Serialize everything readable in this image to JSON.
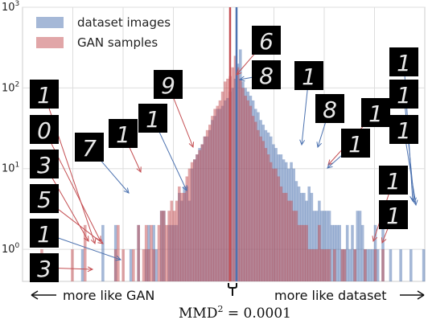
{
  "chart_data": {
    "type": "histogram",
    "yscale": "log",
    "ylim": [
      0.4,
      1000
    ],
    "y_ticks": [
      {
        "value": 1,
        "base": "10",
        "exp": "0"
      },
      {
        "value": 10,
        "base": "10",
        "exp": "1"
      },
      {
        "value": 100,
        "base": "10",
        "exp": "2"
      },
      {
        "value": 1000,
        "base": "10",
        "exp": "3"
      }
    ],
    "grid": true,
    "legend": {
      "position": "top-left"
    },
    "series": [
      {
        "name": "dataset images",
        "color": "#4c72b0",
        "values": [
          0,
          0,
          0,
          0,
          0,
          0,
          0,
          0,
          0,
          0,
          0,
          0,
          0,
          0,
          0,
          0,
          0,
          0,
          0,
          0,
          0,
          0,
          0,
          1,
          0,
          0,
          0,
          0,
          0,
          0,
          0,
          2,
          0,
          0,
          0,
          0,
          2,
          0,
          0,
          0,
          0,
          0,
          1,
          0,
          0,
          2,
          0,
          0,
          1,
          2,
          0,
          2,
          1,
          0,
          3,
          3,
          0,
          2,
          2,
          2,
          2,
          5,
          4,
          6,
          6,
          4,
          10,
          13,
          15,
          18,
          20,
          25,
          25,
          30,
          40,
          45,
          55,
          55,
          60,
          70,
          75,
          90,
          100,
          130,
          200,
          300,
          120,
          100,
          90,
          80,
          70,
          55,
          50,
          40,
          35,
          30,
          28,
          25,
          20,
          18,
          15,
          15,
          13,
          12,
          10,
          12,
          10,
          7,
          6,
          5,
          5,
          4,
          6,
          5,
          3,
          3,
          4,
          3,
          3,
          3,
          3,
          2,
          2,
          2,
          2,
          1,
          1,
          2,
          1,
          2,
          1,
          3,
          3,
          2,
          1,
          1,
          1,
          1,
          2,
          1,
          0,
          2,
          0,
          0,
          1,
          0,
          0,
          0,
          1,
          0,
          0,
          0,
          1,
          0,
          0,
          0,
          0,
          1
        ]
      },
      {
        "name": "GAN samples",
        "color": "#c44e52",
        "values": [
          0,
          0,
          0,
          0,
          0,
          0,
          0,
          1,
          0,
          0,
          0,
          0,
          0,
          0,
          0,
          0,
          0,
          0,
          0,
          1,
          0,
          0,
          0,
          0,
          2,
          0,
          0,
          0,
          0,
          0,
          0,
          0,
          0,
          0,
          0,
          0,
          1,
          2,
          0,
          1,
          0,
          0,
          0,
          1,
          0,
          2,
          0,
          1,
          2,
          1,
          2,
          1,
          0,
          2,
          3,
          3,
          2,
          3,
          4,
          3,
          4,
          6,
          5,
          5,
          8,
          10,
          12,
          13,
          15,
          17,
          20,
          25,
          30,
          35,
          45,
          55,
          60,
          70,
          90,
          120,
          130,
          140,
          180,
          250,
          180,
          130,
          100,
          80,
          70,
          60,
          45,
          38,
          30,
          25,
          22,
          18,
          15,
          12,
          10,
          10,
          8,
          6,
          5,
          5,
          4,
          4,
          3,
          3,
          2,
          2,
          2,
          2,
          1,
          1,
          1,
          1,
          2,
          1,
          1,
          1,
          1,
          0,
          1,
          0,
          0,
          1,
          1,
          0,
          0,
          0,
          1,
          0,
          0,
          0,
          1,
          0,
          0,
          0,
          1,
          0,
          0,
          1,
          0,
          0,
          0,
          0,
          0,
          0,
          0,
          0,
          0,
          0,
          0,
          0,
          0,
          0
        ]
      }
    ],
    "vlines": [
      {
        "label": "GAN mean",
        "color": "#c44e52"
      },
      {
        "label": "dataset mean",
        "color": "#4c72b0"
      }
    ],
    "annotations": {
      "left_arrow": "more like GAN",
      "right_arrow": "more like dataset",
      "mmd": "MMD",
      "mmd_exp": "2",
      "mmd_value": " = 0.0001"
    },
    "thumbnail_digits": {
      "left_column": [
        "1",
        "0",
        "3",
        "5",
        "1",
        "3"
      ],
      "inner_left": [
        "7",
        "1",
        "1",
        "9"
      ],
      "top_center": [
        "6",
        "8"
      ],
      "right_inner": [
        "1",
        "8",
        "1",
        "1"
      ],
      "right_column": [
        "1",
        "1",
        "1",
        "1",
        "1"
      ]
    }
  }
}
